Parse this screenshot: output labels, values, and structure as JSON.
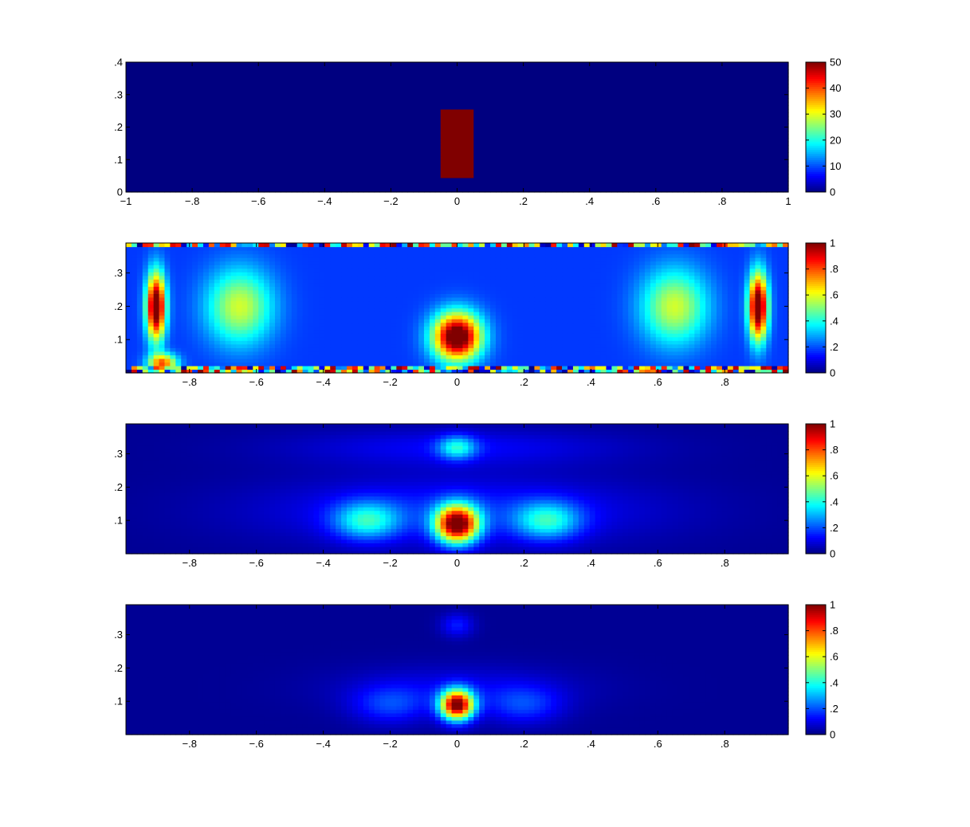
{
  "figure": {
    "background": "#ffffff"
  },
  "chart_data": [
    {
      "type": "heatmap",
      "panel": "1",
      "title": "",
      "xlabel": "",
      "ylabel": "",
      "xlim": [
        -1,
        1
      ],
      "ylim": [
        0,
        0.4
      ],
      "x_ticks": [
        -1,
        -0.8,
        -0.6,
        -0.4,
        -0.2,
        0,
        0.2,
        0.4,
        0.6,
        0.8,
        1
      ],
      "y_ticks": [
        0,
        0.1,
        0.2,
        0.3,
        0.4
      ],
      "colorbar": {
        "range": [
          0,
          50
        ],
        "ticks": [
          0,
          10,
          20,
          30,
          40,
          50
        ]
      },
      "field": {
        "background_value": 0,
        "inclusion": {
          "x_range": [
            -0.05,
            0.05
          ],
          "y_range": [
            0.05,
            0.25
          ],
          "value": 50
        }
      }
    },
    {
      "type": "heatmap",
      "panel": "2",
      "title": "",
      "xlabel": "",
      "ylabel": "",
      "xlim": [
        -0.99,
        0.99
      ],
      "ylim": [
        0,
        0.39
      ],
      "x_ticks": [
        -0.8,
        -0.6,
        -0.4,
        -0.2,
        0,
        0.2,
        0.4,
        0.6,
        0.8
      ],
      "y_ticks": [
        0.1,
        0.2,
        0.3
      ],
      "colorbar": {
        "range": [
          0,
          1
        ],
        "ticks": [
          0,
          0.2,
          0.4,
          0.6,
          0.8,
          1
        ]
      },
      "field": {
        "background_value": 0.18,
        "peaks": [
          {
            "x": 0,
            "y": 0.11,
            "value": 0.95,
            "sx": 0.05,
            "sy": 0.05
          },
          {
            "x": -0.65,
            "y": 0.2,
            "value": 0.4,
            "sx": 0.07,
            "sy": 0.08
          },
          {
            "x": 0.65,
            "y": 0.2,
            "value": 0.4,
            "sx": 0.07,
            "sy": 0.08
          },
          {
            "x": -0.9,
            "y": 0.2,
            "value": 0.95,
            "sx": 0.02,
            "sy": 0.07
          },
          {
            "x": 0.9,
            "y": 0.2,
            "value": 0.95,
            "sx": 0.02,
            "sy": 0.07
          },
          {
            "x": -0.88,
            "y": 0.03,
            "value": 0.6,
            "sx": 0.03,
            "sy": 0.02
          }
        ],
        "noisy_edges": true
      }
    },
    {
      "type": "heatmap",
      "panel": "3",
      "title": "",
      "xlabel": "",
      "ylabel": "",
      "xlim": [
        -0.99,
        0.99
      ],
      "ylim": [
        0,
        0.39
      ],
      "x_ticks": [
        -0.8,
        -0.6,
        -0.4,
        -0.2,
        0,
        0.2,
        0.4,
        0.6,
        0.8
      ],
      "y_ticks": [
        0.1,
        0.2,
        0.3
      ],
      "colorbar": {
        "range": [
          0,
          1
        ],
        "ticks": [
          0,
          0.2,
          0.4,
          0.6,
          0.8,
          1
        ]
      },
      "field": {
        "background_value": 0.02,
        "peaks": [
          {
            "x": 0,
            "y": 0.09,
            "value": 0.98,
            "sx": 0.045,
            "sy": 0.04
          },
          {
            "x": -0.27,
            "y": 0.1,
            "value": 0.32,
            "sx": 0.07,
            "sy": 0.04
          },
          {
            "x": 0.27,
            "y": 0.1,
            "value": 0.32,
            "sx": 0.07,
            "sy": 0.04
          },
          {
            "x": 0,
            "y": 0.32,
            "value": 0.3,
            "sx": 0.04,
            "sy": 0.025
          },
          {
            "x": 0,
            "y": 0.13,
            "value": 0.14,
            "sx": 0.4,
            "sy": 0.07
          },
          {
            "x": 0,
            "y": 0.32,
            "value": 0.1,
            "sx": 0.35,
            "sy": 0.04
          }
        ]
      }
    },
    {
      "type": "heatmap",
      "panel": "4",
      "title": "",
      "xlabel": "",
      "ylabel": "",
      "xlim": [
        -0.99,
        0.99
      ],
      "ylim": [
        0,
        0.39
      ],
      "x_ticks": [
        -0.8,
        -0.6,
        -0.4,
        -0.2,
        0,
        0.2,
        0.4,
        0.6,
        0.8
      ],
      "y_ticks": [
        0.1,
        0.2,
        0.3
      ],
      "colorbar": {
        "range": [
          0,
          1
        ],
        "ticks": [
          0,
          0.2,
          0.4,
          0.6,
          0.8,
          1
        ]
      },
      "field": {
        "background_value": 0.02,
        "peaks": [
          {
            "x": 0,
            "y": 0.09,
            "value": 0.98,
            "sx": 0.035,
            "sy": 0.032
          },
          {
            "x": -0.2,
            "y": 0.09,
            "value": 0.15,
            "sx": 0.08,
            "sy": 0.04
          },
          {
            "x": 0.2,
            "y": 0.09,
            "value": 0.15,
            "sx": 0.08,
            "sy": 0.04
          },
          {
            "x": 0,
            "y": 0.33,
            "value": 0.13,
            "sx": 0.035,
            "sy": 0.025
          },
          {
            "x": 0,
            "y": 0.14,
            "value": 0.08,
            "sx": 0.25,
            "sy": 0.05
          }
        ]
      }
    }
  ]
}
